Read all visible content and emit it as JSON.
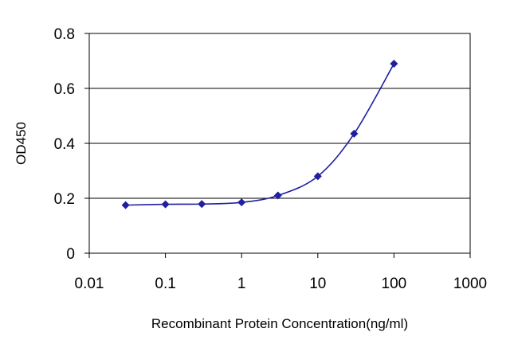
{
  "chart_data": {
    "type": "line",
    "title": "",
    "xlabel": "Recombinant Protein Concentration(ng/ml)",
    "ylabel": "OD450",
    "x_scale": "log",
    "xlim": [
      0.01,
      1000
    ],
    "ylim": [
      0,
      0.8
    ],
    "x_ticks": [
      "0.01",
      "0.1",
      "1",
      "10",
      "100",
      "1000"
    ],
    "y_ticks": [
      "0",
      "0.2",
      "0.4",
      "0.6",
      "0.8"
    ],
    "grid": "horizontal",
    "legend": "none",
    "series": [
      {
        "color": "#1f1fa0",
        "marker": "diamond",
        "points": [
          {
            "x": 0.03,
            "y": 0.175
          },
          {
            "x": 0.1,
            "y": 0.178
          },
          {
            "x": 0.3,
            "y": 0.179
          },
          {
            "x": 1,
            "y": 0.185
          },
          {
            "x": 3,
            "y": 0.21
          },
          {
            "x": 10,
            "y": 0.28
          },
          {
            "x": 30,
            "y": 0.435
          },
          {
            "x": 100,
            "y": 0.69
          }
        ]
      }
    ]
  }
}
